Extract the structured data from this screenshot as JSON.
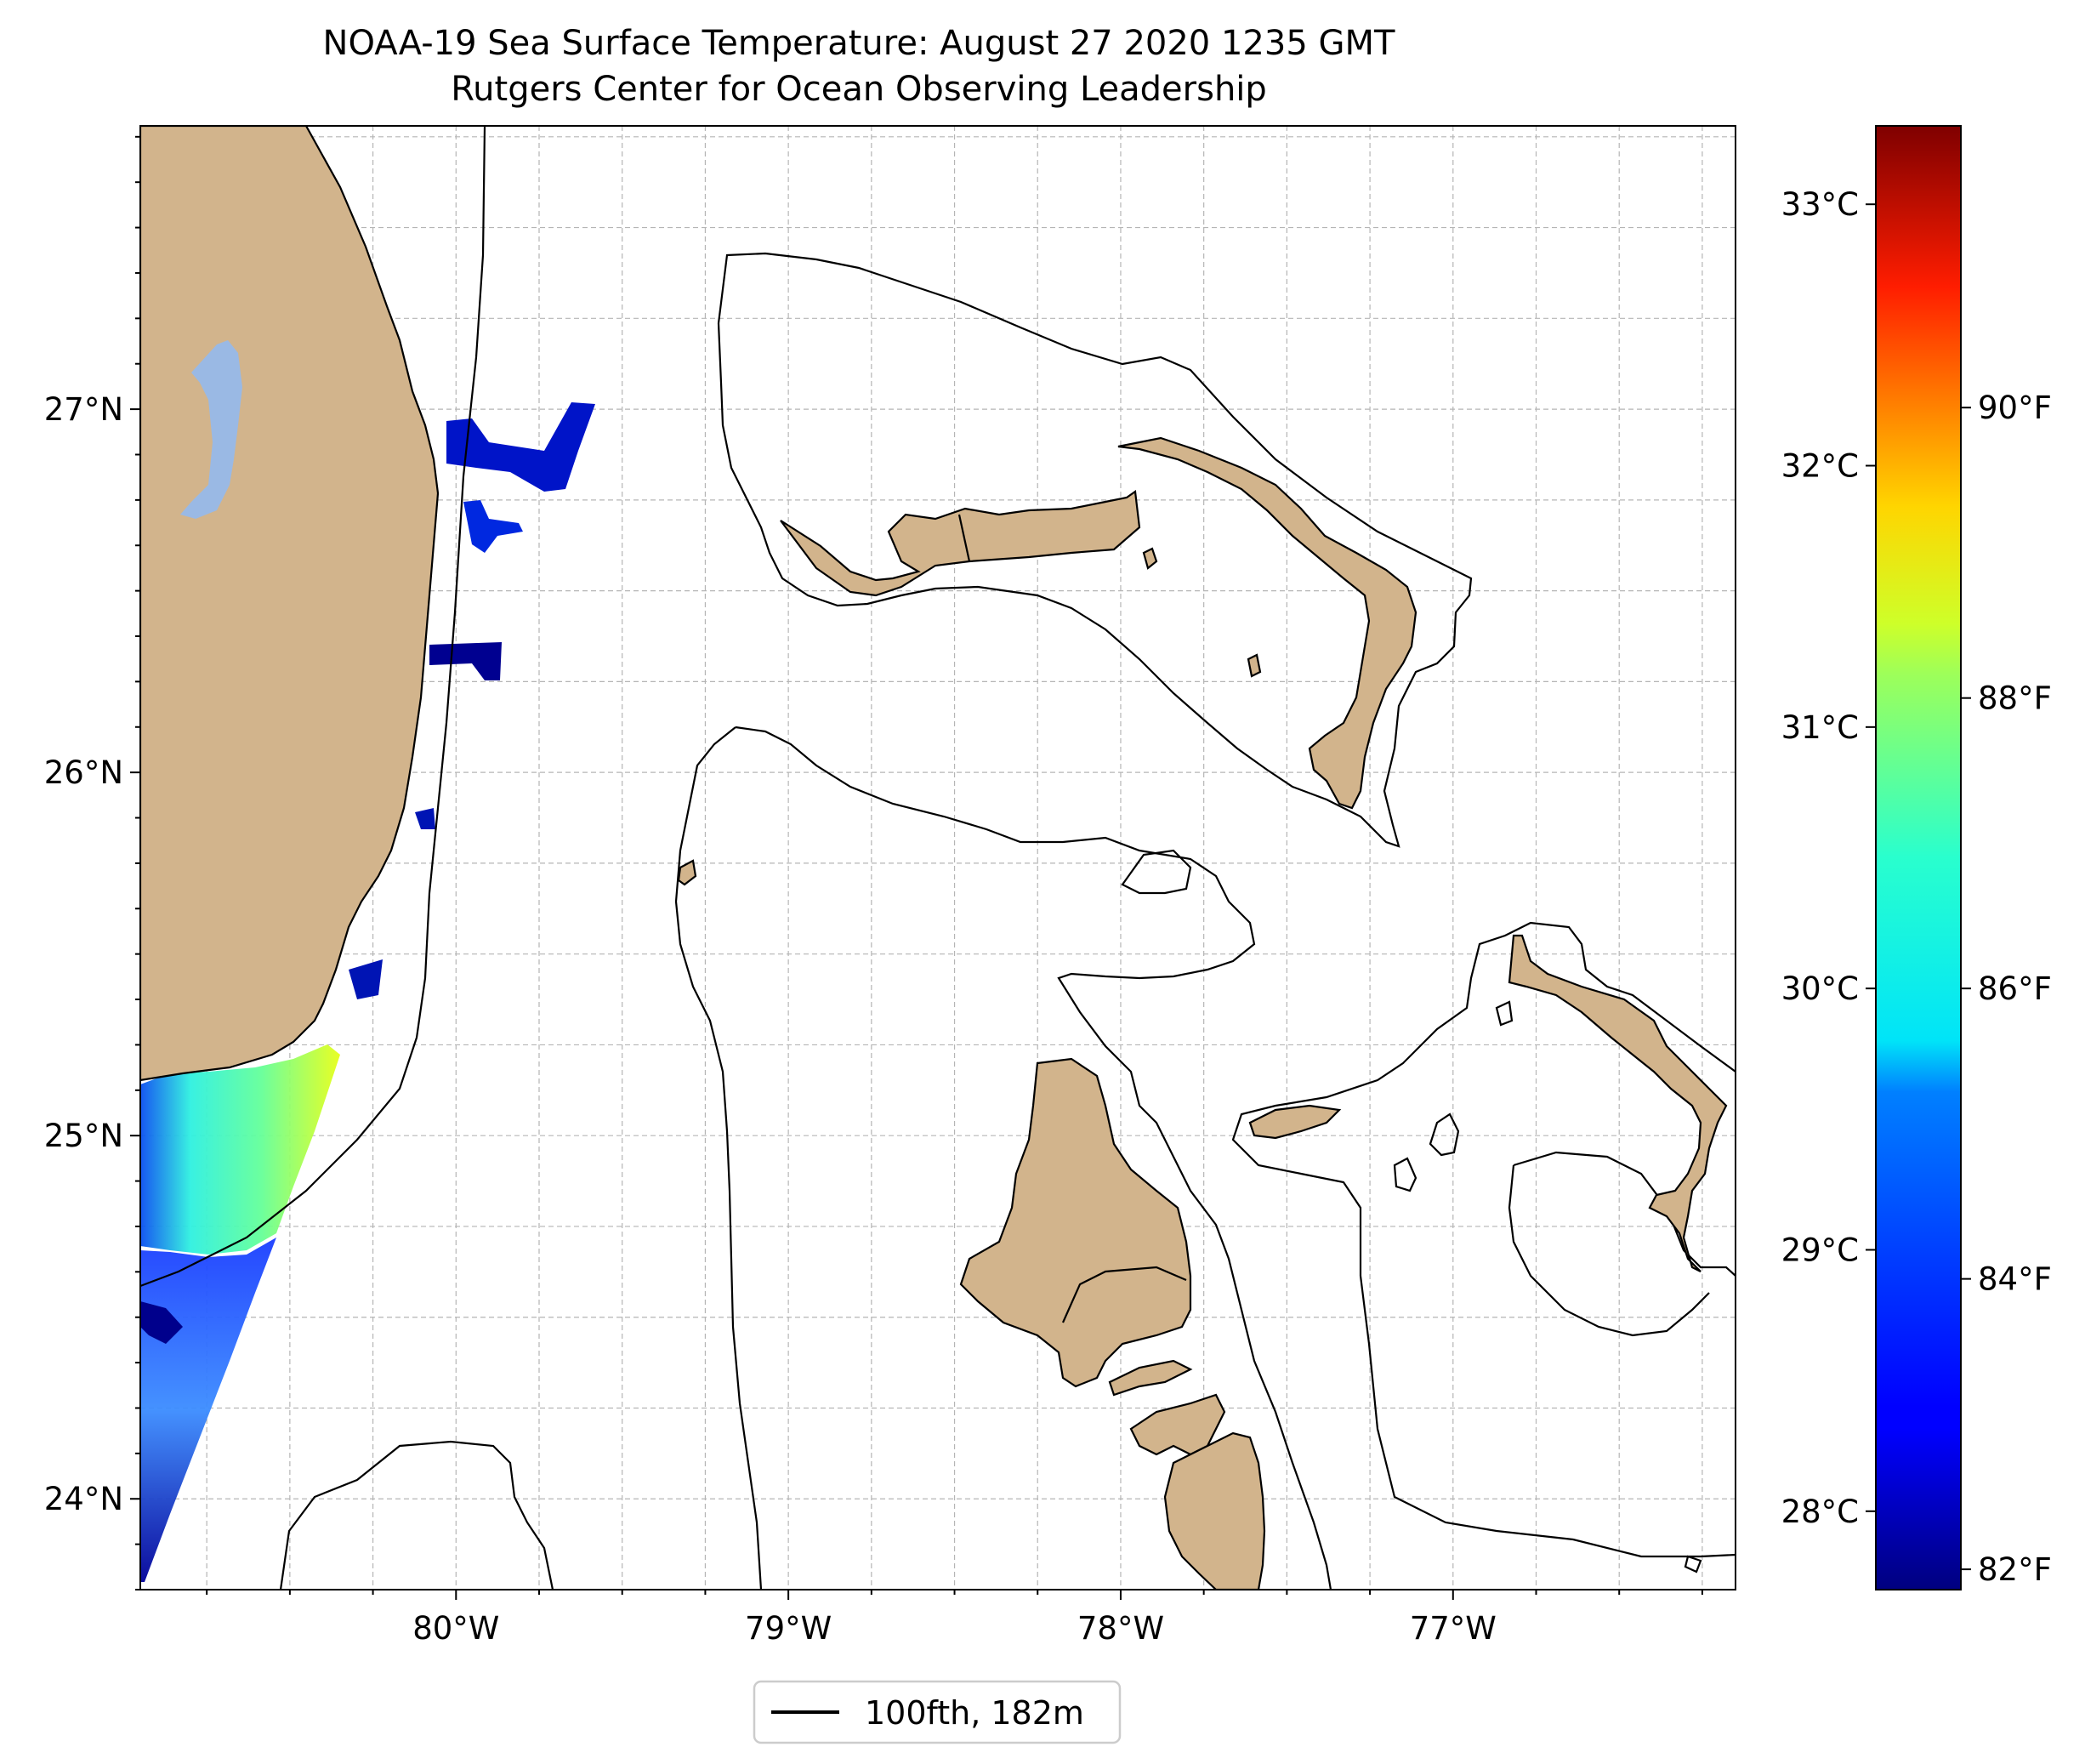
{
  "title": "NOAA-19 Sea Surface Temperature: August 27 2020 1235 GMT",
  "subtitle": "Rutgers Center for Ocean Observing Leadership",
  "legend": {
    "label": "100fth, 182m"
  },
  "map_axes": {
    "lon_range": [
      -80.95,
      -76.15
    ],
    "lat_range": [
      23.75,
      27.78
    ],
    "lon_ticks": [
      {
        "value": -80,
        "label": "80°W"
      },
      {
        "value": -79,
        "label": "79°W"
      },
      {
        "value": -78,
        "label": "78°W"
      },
      {
        "value": -77,
        "label": "77°W"
      }
    ],
    "lat_ticks": [
      {
        "value": 27,
        "label": "27°N"
      },
      {
        "value": 26,
        "label": "26°N"
      },
      {
        "value": 25,
        "label": "25°N"
      },
      {
        "value": 24,
        "label": "24°N"
      }
    ],
    "grid": true
  },
  "colorbar": {
    "colormap": "jet",
    "range_c": [
      27.7,
      33.3
    ],
    "celsius_ticks": [
      {
        "value": 28,
        "label": "28°C"
      },
      {
        "value": 29,
        "label": "29°C"
      },
      {
        "value": 30,
        "label": "30°C"
      },
      {
        "value": 31,
        "label": "31°C"
      },
      {
        "value": 32,
        "label": "32°C"
      },
      {
        "value": 33,
        "label": "33°C"
      }
    ],
    "fahrenheit_ticks": [
      {
        "value": 82,
        "label": "82°F"
      },
      {
        "value": 84,
        "label": "84°F"
      },
      {
        "value": 86,
        "label": "86°F"
      },
      {
        "value": 88,
        "label": "88°F"
      },
      {
        "value": 90,
        "label": "90°F"
      }
    ]
  },
  "colors": {
    "land": "#d2b48c",
    "lake": "#9ab9e4",
    "sst_low": "#00007f",
    "sst_mid": "#1fffde",
    "sst_high": "#e5ff16"
  }
}
